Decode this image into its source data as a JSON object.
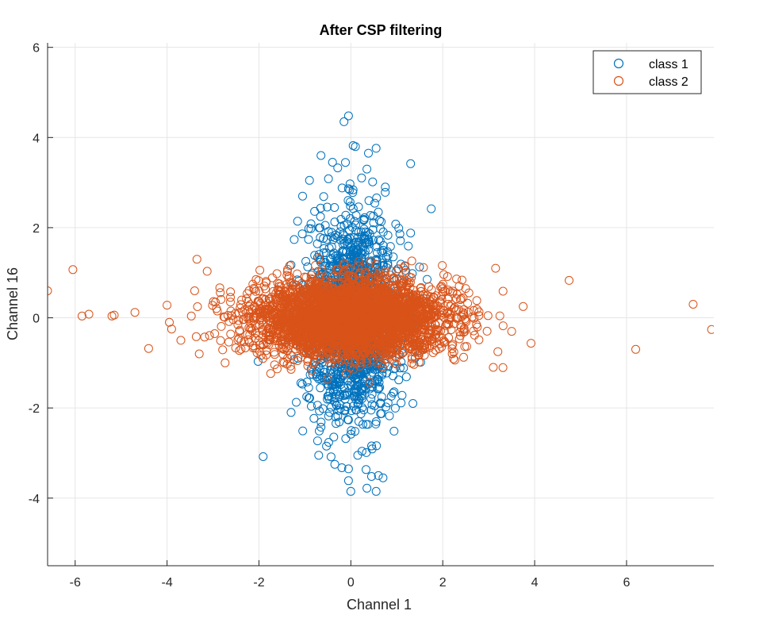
{
  "chart_data": {
    "type": "scatter",
    "title": "After CSP filtering",
    "xlabel": "Channel 1",
    "ylabel": "Channel 16",
    "xlim": [
      -6.6,
      7.9
    ],
    "ylim": [
      -5.5,
      6.1
    ],
    "xticks": [
      -6,
      -4,
      -2,
      0,
      2,
      4,
      6
    ],
    "xtick_labels": [
      "-6",
      "-4",
      "-2",
      "0",
      "2",
      "4",
      "6"
    ],
    "yticks": [
      -4,
      -2,
      0,
      2,
      4,
      6
    ],
    "ytick_labels": [
      "-4",
      "-2",
      "0",
      "2",
      "4",
      "6"
    ],
    "grid": true,
    "legend_position": "top-right",
    "marker": "open-circle",
    "series": [
      {
        "name": "class 1",
        "color": "#0072BD",
        "cluster": {
          "center": [
            0.05,
            0.0
          ],
          "spread": [
            0.5,
            1.1
          ],
          "approx_point_count": 1600
        },
        "outliers": [
          [
            -0.15,
            4.35
          ],
          [
            -0.05,
            4.48
          ],
          [
            0.05,
            3.82
          ],
          [
            0.1,
            3.8
          ],
          [
            0.55,
            3.76
          ],
          [
            1.3,
            3.42
          ],
          [
            1.75,
            2.42
          ],
          [
            -0.65,
            3.6
          ],
          [
            -0.4,
            3.45
          ],
          [
            0.35,
            3.3
          ],
          [
            -0.9,
            3.05
          ],
          [
            0.75,
            2.9
          ],
          [
            1.3,
            1.88
          ],
          [
            -1.05,
            2.7
          ],
          [
            0.0,
            -3.85
          ],
          [
            0.55,
            -3.85
          ],
          [
            0.35,
            -3.78
          ],
          [
            0.7,
            -3.55
          ],
          [
            0.45,
            -3.52
          ],
          [
            0.6,
            -3.5
          ],
          [
            -0.05,
            -3.35
          ],
          [
            -0.35,
            -3.25
          ],
          [
            -0.7,
            -3.05
          ],
          [
            0.15,
            -3.05
          ],
          [
            1.35,
            -1.9
          ],
          [
            -1.3,
            -2.1
          ]
        ]
      },
      {
        "name": "class 2",
        "color": "#D95319",
        "cluster": {
          "center": [
            0.0,
            0.0
          ],
          "spread": [
            1.05,
            0.42
          ],
          "approx_point_count": 3500
        },
        "outliers": [
          [
            -6.6,
            0.6
          ],
          [
            -6.05,
            1.07
          ],
          [
            -5.85,
            0.04
          ],
          [
            -5.7,
            0.08
          ],
          [
            -5.2,
            0.04
          ],
          [
            -5.15,
            0.06
          ],
          [
            -4.7,
            0.12
          ],
          [
            -4.4,
            -0.68
          ],
          [
            -4.0,
            0.28
          ],
          [
            -3.95,
            -0.1
          ],
          [
            -3.9,
            -0.25
          ],
          [
            -3.7,
            -0.5
          ],
          [
            -3.4,
            0.6
          ],
          [
            -3.35,
            1.3
          ],
          [
            -3.3,
            -0.8
          ],
          [
            3.75,
            0.25
          ],
          [
            3.5,
            -0.3
          ],
          [
            3.15,
            1.1
          ],
          [
            3.2,
            -0.75
          ],
          [
            3.1,
            -1.1
          ],
          [
            4.75,
            0.83
          ],
          [
            6.2,
            -0.7
          ],
          [
            7.45,
            0.3
          ],
          [
            7.85,
            -0.26
          ]
        ]
      }
    ]
  }
}
